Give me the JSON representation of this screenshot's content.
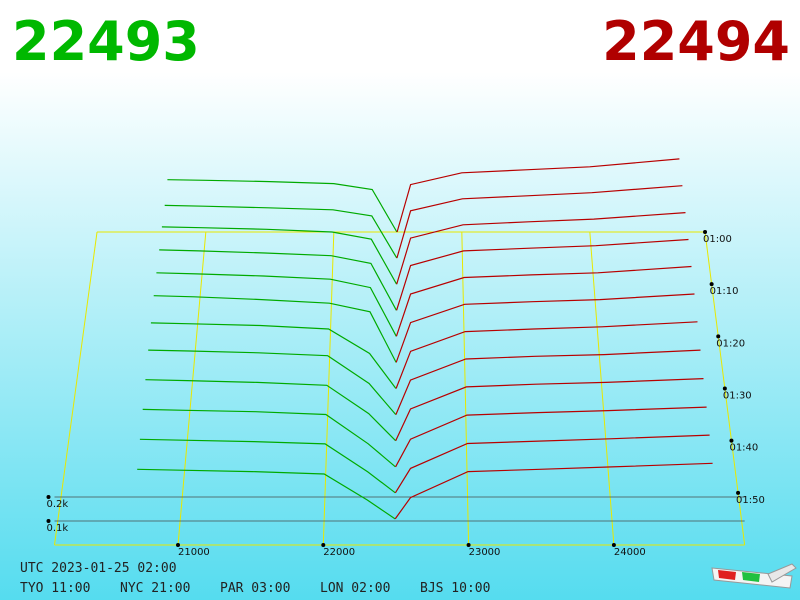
{
  "chart_data": {
    "type": "depth3d",
    "best_bid": 22493,
    "best_ask": 22494,
    "bid_color": "#00aa00",
    "ask_color": "#b80000",
    "xlim": [
      20150,
      24900
    ],
    "xticks": [
      21000,
      22000,
      23000,
      24000
    ],
    "ylim": [
      0,
      400
    ],
    "yticks": [
      {
        "value": 100,
        "label": "0.1k"
      },
      {
        "value": 200,
        "label": "0.2k"
      }
    ],
    "times": [
      "01:00",
      null,
      "01:10",
      null,
      "01:20",
      null,
      "01:30",
      null,
      "01:40",
      null,
      "01:50",
      null
    ],
    "bids": {
      "prices": [
        20700,
        21000,
        21500,
        22000,
        22300,
        22493
      ],
      "depths": [
        [
          265,
          262,
          255,
          245,
          215,
          0
        ],
        [
          262,
          258,
          250,
          240,
          210,
          0
        ],
        [
          280,
          276,
          268,
          255,
          220,
          0
        ],
        [
          290,
          285,
          275,
          262,
          225,
          0
        ],
        [
          300,
          295,
          285,
          270,
          230,
          0
        ],
        [
          310,
          305,
          292,
          275,
          235,
          0
        ],
        [
          300,
          296,
          288,
          272,
          160,
          0
        ],
        [
          290,
          286,
          278,
          265,
          140,
          0
        ],
        [
          270,
          266,
          258,
          245,
          120,
          0
        ],
        [
          250,
          246,
          240,
          228,
          100,
          0
        ],
        [
          230,
          226,
          220,
          210,
          90,
          0
        ],
        [
          210,
          206,
          200,
          190,
          80,
          0
        ]
      ]
    },
    "asks": {
      "prices": [
        22494,
        22600,
        23000,
        23500,
        24000,
        24700
      ],
      "depths": [
        [
          0,
          240,
          300,
          315,
          330,
          370
        ],
        [
          0,
          235,
          295,
          310,
          325,
          360
        ],
        [
          0,
          225,
          290,
          305,
          318,
          350
        ],
        [
          0,
          215,
          285,
          298,
          310,
          340
        ],
        [
          0,
          200,
          278,
          290,
          300,
          330
        ],
        [
          0,
          185,
          270,
          282,
          292,
          318
        ],
        [
          0,
          170,
          260,
          272,
          282,
          305
        ],
        [
          0,
          155,
          250,
          262,
          270,
          290
        ],
        [
          0,
          140,
          238,
          250,
          258,
          275
        ],
        [
          0,
          120,
          225,
          236,
          245,
          260
        ],
        [
          0,
          105,
          212,
          222,
          232,
          248
        ],
        [
          0,
          90,
          200,
          210,
          220,
          235
        ]
      ]
    }
  },
  "footer": {
    "utc": "UTC 2023-01-25 02:00",
    "clocks": [
      "TYO 11:00",
      "NYC 21:00",
      "PAR 03:00",
      "LON 02:00",
      "BJS 10:00"
    ]
  }
}
